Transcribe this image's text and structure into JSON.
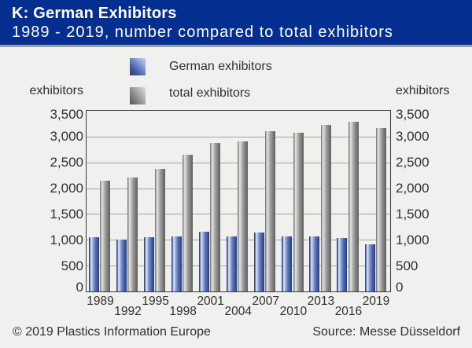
{
  "header": {
    "title": "K: German Exhibitors",
    "subtitle": "1989 - 2019, number compared to total exhibitors"
  },
  "legend": {
    "german_label": "German exhibitors",
    "total_label": "total exhibitors"
  },
  "axis": {
    "unit_left": "exhibitors",
    "unit_right": "exhibitors"
  },
  "footer": {
    "copyright": "© 2019 Plastics Information Europe",
    "source": "Source: Messe Düsseldorf"
  },
  "colors": {
    "header_bg": "#052e91",
    "german_bar": "#4a63ac",
    "total_bar": "#8a8a8a",
    "text": "#303030",
    "background": "#f0f0ef"
  },
  "chart_data": {
    "type": "bar",
    "title": "K: German Exhibitors",
    "subtitle": "1989 - 2019, number compared to total exhibitors",
    "categories": [
      "1989",
      "1992",
      "1995",
      "1998",
      "2001",
      "2004",
      "2007",
      "2010",
      "2013",
      "2016",
      "2019"
    ],
    "series": [
      {
        "name": "German exhibitors",
        "values": [
          1050,
          1010,
          1050,
          1060,
          1150,
          1070,
          1140,
          1070,
          1060,
          1040,
          920
        ]
      },
      {
        "name": "total exhibitors",
        "values": [
          2150,
          2200,
          2380,
          2650,
          2870,
          2900,
          3110,
          3080,
          3220,
          3290,
          3160
        ]
      }
    ],
    "xlabel": "",
    "ylabel": "exhibitors",
    "ylim": [
      0,
      3500
    ],
    "ytick_step": 500,
    "grid": true,
    "legend_position": "top"
  }
}
